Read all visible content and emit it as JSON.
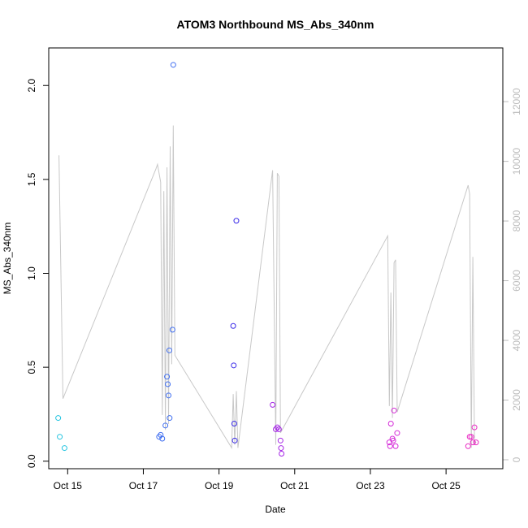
{
  "chart_data": {
    "type": "scatter",
    "title": "ATOM3 Northbound MS_Abs_340nm",
    "xlabel": "Date",
    "ylabel": "MS_Abs_340nm",
    "x_ticks": [
      "Oct 15",
      "Oct 17",
      "Oct 19",
      "Oct 21",
      "Oct 23",
      "Oct 25"
    ],
    "y_ticks": [
      "0.0",
      "0.5",
      "1.0",
      "1.5",
      "2.0"
    ],
    "y2_ticks": [
      "0",
      "2000",
      "4000",
      "6000",
      "8000",
      "10000",
      "12000"
    ],
    "xlim": [
      "Oct 14 2017 12:00",
      "Oct 26 2017 12:00"
    ],
    "ylim": [
      -0.04,
      2.2
    ],
    "y2lim": [
      -300,
      13800
    ],
    "grid": false,
    "colors": {
      "points": "gradient cyan to blue to magenta by date",
      "line": "#c8c8c8",
      "right_axis": "#bdbdbd"
    },
    "points": [
      {
        "x": "2017-10-14 18:00",
        "y": 0.23,
        "color": "#22c4e0"
      },
      {
        "x": "2017-10-14 19:00",
        "y": 0.13,
        "color": "#22c4e0"
      },
      {
        "x": "2017-10-14 22:00",
        "y": 0.07,
        "color": "#22c4e0"
      },
      {
        "x": "2017-10-17 10:00",
        "y": 0.13,
        "color": "#3e6df0"
      },
      {
        "x": "2017-10-17 11:00",
        "y": 0.14,
        "color": "#3e6df0"
      },
      {
        "x": "2017-10-17 12:00",
        "y": 0.12,
        "color": "#3e6df0"
      },
      {
        "x": "2017-10-17 14:00",
        "y": 0.19,
        "color": "#3e6df0"
      },
      {
        "x": "2017-10-17 15:00",
        "y": 0.45,
        "color": "#3e6df0"
      },
      {
        "x": "2017-10-17 15:30",
        "y": 0.41,
        "color": "#3e6df0"
      },
      {
        "x": "2017-10-17 16:00",
        "y": 0.35,
        "color": "#3e6df0"
      },
      {
        "x": "2017-10-17 16:30",
        "y": 0.59,
        "color": "#3e6df0"
      },
      {
        "x": "2017-10-17 16:40",
        "y": 0.23,
        "color": "#3e6df0"
      },
      {
        "x": "2017-10-17 18:30",
        "y": 0.7,
        "color": "#3e6df0"
      },
      {
        "x": "2017-10-17 19:00",
        "y": 2.11,
        "color": "#3e6df0"
      },
      {
        "x": "2017-10-19 09:00",
        "y": 0.72,
        "color": "#3a2ae8"
      },
      {
        "x": "2017-10-19 09:20",
        "y": 0.51,
        "color": "#3a2ae8"
      },
      {
        "x": "2017-10-19 09:40",
        "y": 0.2,
        "color": "#3a2ae8"
      },
      {
        "x": "2017-10-19 10:00",
        "y": 0.11,
        "color": "#3a2ae8"
      },
      {
        "x": "2017-10-19 11:00",
        "y": 1.28,
        "color": "#3a2ae8"
      },
      {
        "x": "2017-10-20 10:00",
        "y": 0.3,
        "color": "#a526e6"
      },
      {
        "x": "2017-10-20 12:00",
        "y": 0.17,
        "color": "#a526e6"
      },
      {
        "x": "2017-10-20 13:00",
        "y": 0.18,
        "color": "#a526e6"
      },
      {
        "x": "2017-10-20 14:00",
        "y": 0.17,
        "color": "#a526e6"
      },
      {
        "x": "2017-10-20 15:00",
        "y": 0.11,
        "color": "#a526e6"
      },
      {
        "x": "2017-10-20 15:20",
        "y": 0.07,
        "color": "#a526e6"
      },
      {
        "x": "2017-10-20 15:40",
        "y": 0.04,
        "color": "#a526e6"
      },
      {
        "x": "2017-10-23 12:00",
        "y": 0.1,
        "color": "#d52ad8"
      },
      {
        "x": "2017-10-23 12:30",
        "y": 0.08,
        "color": "#d52ad8"
      },
      {
        "x": "2017-10-23 13:00",
        "y": 0.2,
        "color": "#d52ad8"
      },
      {
        "x": "2017-10-23 14:00",
        "y": 0.12,
        "color": "#d52ad8"
      },
      {
        "x": "2017-10-23 14:30",
        "y": 0.11,
        "color": "#d52ad8"
      },
      {
        "x": "2017-10-23 15:00",
        "y": 0.27,
        "color": "#d52ad8"
      },
      {
        "x": "2017-10-23 16:00",
        "y": 0.08,
        "color": "#d52ad8"
      },
      {
        "x": "2017-10-23 17:00",
        "y": 0.15,
        "color": "#d52ad8"
      },
      {
        "x": "2017-10-25 14:00",
        "y": 0.08,
        "color": "#ea2cc4"
      },
      {
        "x": "2017-10-25 15:00",
        "y": 0.13,
        "color": "#ea2cc4"
      },
      {
        "x": "2017-10-25 16:00",
        "y": 0.13,
        "color": "#ea2cc4"
      },
      {
        "x": "2017-10-25 17:00",
        "y": 0.1,
        "color": "#ea2cc4"
      },
      {
        "x": "2017-10-25 18:00",
        "y": 0.18,
        "color": "#ea2cc4"
      },
      {
        "x": "2017-10-25 19:00",
        "y": 0.1,
        "color": "#ea2cc4"
      }
    ],
    "secondary_line": {
      "axis": "right",
      "points": [
        [
          "2017-10-14 18:30",
          10200
        ],
        [
          "2017-10-14 21:00",
          2050
        ],
        [
          "2017-10-17 08:00",
          9750
        ],
        [
          "2017-10-17 09:00",
          9900
        ],
        [
          "2017-10-17 11:00",
          9300
        ],
        [
          "2017-10-17 12:00",
          1500
        ],
        [
          "2017-10-17 13:00",
          9000
        ],
        [
          "2017-10-17 14:00",
          1000
        ],
        [
          "2017-10-17 15:00",
          9800
        ],
        [
          "2017-10-17 16:00",
          1200
        ],
        [
          "2017-10-17 17:00",
          10500
        ],
        [
          "2017-10-17 18:00",
          3200
        ],
        [
          "2017-10-17 19:00",
          11200
        ],
        [
          "2017-10-17 20:00",
          3500
        ],
        [
          "2017-10-19 08:00",
          400
        ],
        [
          "2017-10-19 09:00",
          2200
        ],
        [
          "2017-10-19 10:00",
          500
        ],
        [
          "2017-10-19 11:00",
          2300
        ],
        [
          "2017-10-19 12:00",
          400
        ],
        [
          "2017-10-20 10:00",
          9700
        ],
        [
          "2017-10-20 12:00",
          500
        ],
        [
          "2017-10-20 13:00",
          9600
        ],
        [
          "2017-10-20 14:00",
          9500
        ],
        [
          "2017-10-20 15:00",
          900
        ],
        [
          "2017-10-23 11:00",
          7500
        ],
        [
          "2017-10-23 12:00",
          1800
        ],
        [
          "2017-10-23 13:00",
          5600
        ],
        [
          "2017-10-23 14:00",
          1400
        ],
        [
          "2017-10-23 15:00",
          6600
        ],
        [
          "2017-10-23 16:00",
          6700
        ],
        [
          "2017-10-23 17:00",
          1600
        ],
        [
          "2017-10-25 14:00",
          9200
        ],
        [
          "2017-10-25 15:00",
          8900
        ],
        [
          "2017-10-25 16:00",
          400
        ],
        [
          "2017-10-25 17:00",
          6800
        ],
        [
          "2017-10-25 18:00",
          500
        ],
        [
          "2017-10-25 19:00",
          600
        ]
      ]
    }
  }
}
